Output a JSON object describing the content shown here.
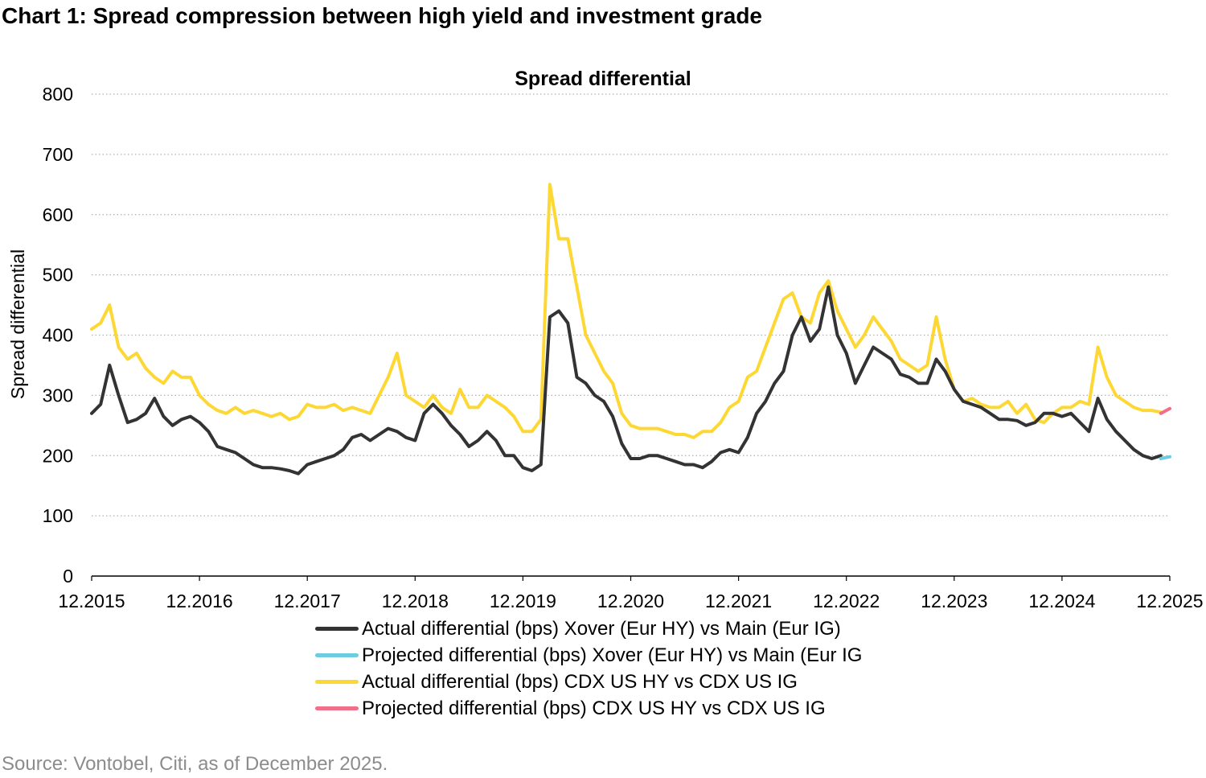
{
  "title": "Chart 1: Spread compression between high yield and investment grade",
  "source": "Source: Vontobel, Citi, as of December 2025.",
  "chart_data": {
    "type": "line",
    "title": "Spread differential",
    "ylabel": "Spread differential",
    "xlabel": "",
    "ylim": [
      0,
      800
    ],
    "yticks": [
      "0",
      "100",
      "200",
      "300",
      "400",
      "500",
      "600",
      "700",
      "800"
    ],
    "xlim": [
      "2015-12",
      "2025-12"
    ],
    "xticks": [
      "12.2015",
      "12.2016",
      "12.2017",
      "12.2018",
      "12.2019",
      "12.2020",
      "12.2021",
      "12.2022",
      "12.2023",
      "12.2024",
      "12.2025"
    ],
    "grid": "horizontal dotted",
    "legend_position": "bottom",
    "x_start": "2015-12",
    "x_step": "monthly",
    "series": [
      {
        "name": "Actual differential (bps) Xover (Eur HY) vs Main (Eur IG)",
        "color": "#333333",
        "x_start": "2015-12",
        "values": [
          270,
          285,
          350,
          300,
          255,
          260,
          270,
          295,
          265,
          250,
          260,
          265,
          255,
          240,
          215,
          210,
          205,
          195,
          185,
          180,
          180,
          178,
          175,
          170,
          185,
          190,
          195,
          200,
          210,
          230,
          235,
          225,
          235,
          245,
          240,
          230,
          225,
          270,
          285,
          270,
          250,
          235,
          215,
          225,
          240,
          225,
          200,
          200,
          180,
          175,
          185,
          430,
          440,
          420,
          330,
          320,
          300,
          290,
          265,
          220,
          195,
          195,
          200,
          200,
          195,
          190,
          185,
          185,
          180,
          190,
          205,
          210,
          205,
          230,
          270,
          290,
          320,
          340,
          400,
          430,
          390,
          410,
          480,
          400,
          370,
          320,
          350,
          380,
          370,
          360,
          335,
          330,
          320,
          320,
          360,
          340,
          310,
          290,
          285,
          280,
          270,
          260,
          260,
          258,
          250,
          255,
          270,
          270,
          265,
          270,
          255,
          240,
          295,
          260,
          240,
          225,
          210,
          200,
          195,
          200
        ]
      },
      {
        "name": "Projected differential (bps) Xover (Eur HY) vs Main (Eur IG",
        "color": "#6ecbe0",
        "x_start": "2025-11",
        "values": [
          195,
          198
        ]
      },
      {
        "name": "Actual differential (bps) CDX US HY vs CDX US IG",
        "color": "#fdd835",
        "x_start": "2015-12",
        "values": [
          410,
          420,
          450,
          380,
          360,
          370,
          345,
          330,
          320,
          340,
          330,
          330,
          300,
          285,
          275,
          270,
          280,
          270,
          275,
          270,
          265,
          270,
          260,
          265,
          285,
          280,
          280,
          285,
          275,
          280,
          275,
          270,
          300,
          330,
          370,
          300,
          290,
          280,
          300,
          280,
          270,
          310,
          280,
          280,
          300,
          290,
          280,
          265,
          240,
          240,
          260,
          650,
          560,
          560,
          480,
          400,
          370,
          340,
          320,
          270,
          250,
          245,
          245,
          245,
          240,
          235,
          235,
          230,
          240,
          240,
          255,
          280,
          290,
          330,
          340,
          380,
          420,
          460,
          470,
          430,
          420,
          470,
          490,
          440,
          410,
          380,
          400,
          430,
          410,
          390,
          360,
          350,
          340,
          350,
          430,
          360,
          310,
          290,
          295,
          285,
          280,
          280,
          290,
          270,
          285,
          260,
          255,
          270,
          280,
          280,
          290,
          285,
          380,
          330,
          300,
          290,
          280,
          275,
          275,
          272
        ]
      },
      {
        "name": "Projected differential (bps) CDX US HY vs CDX US IG",
        "color": "#f0708a",
        "x_start": "2025-11",
        "values": [
          270,
          278
        ]
      }
    ]
  }
}
